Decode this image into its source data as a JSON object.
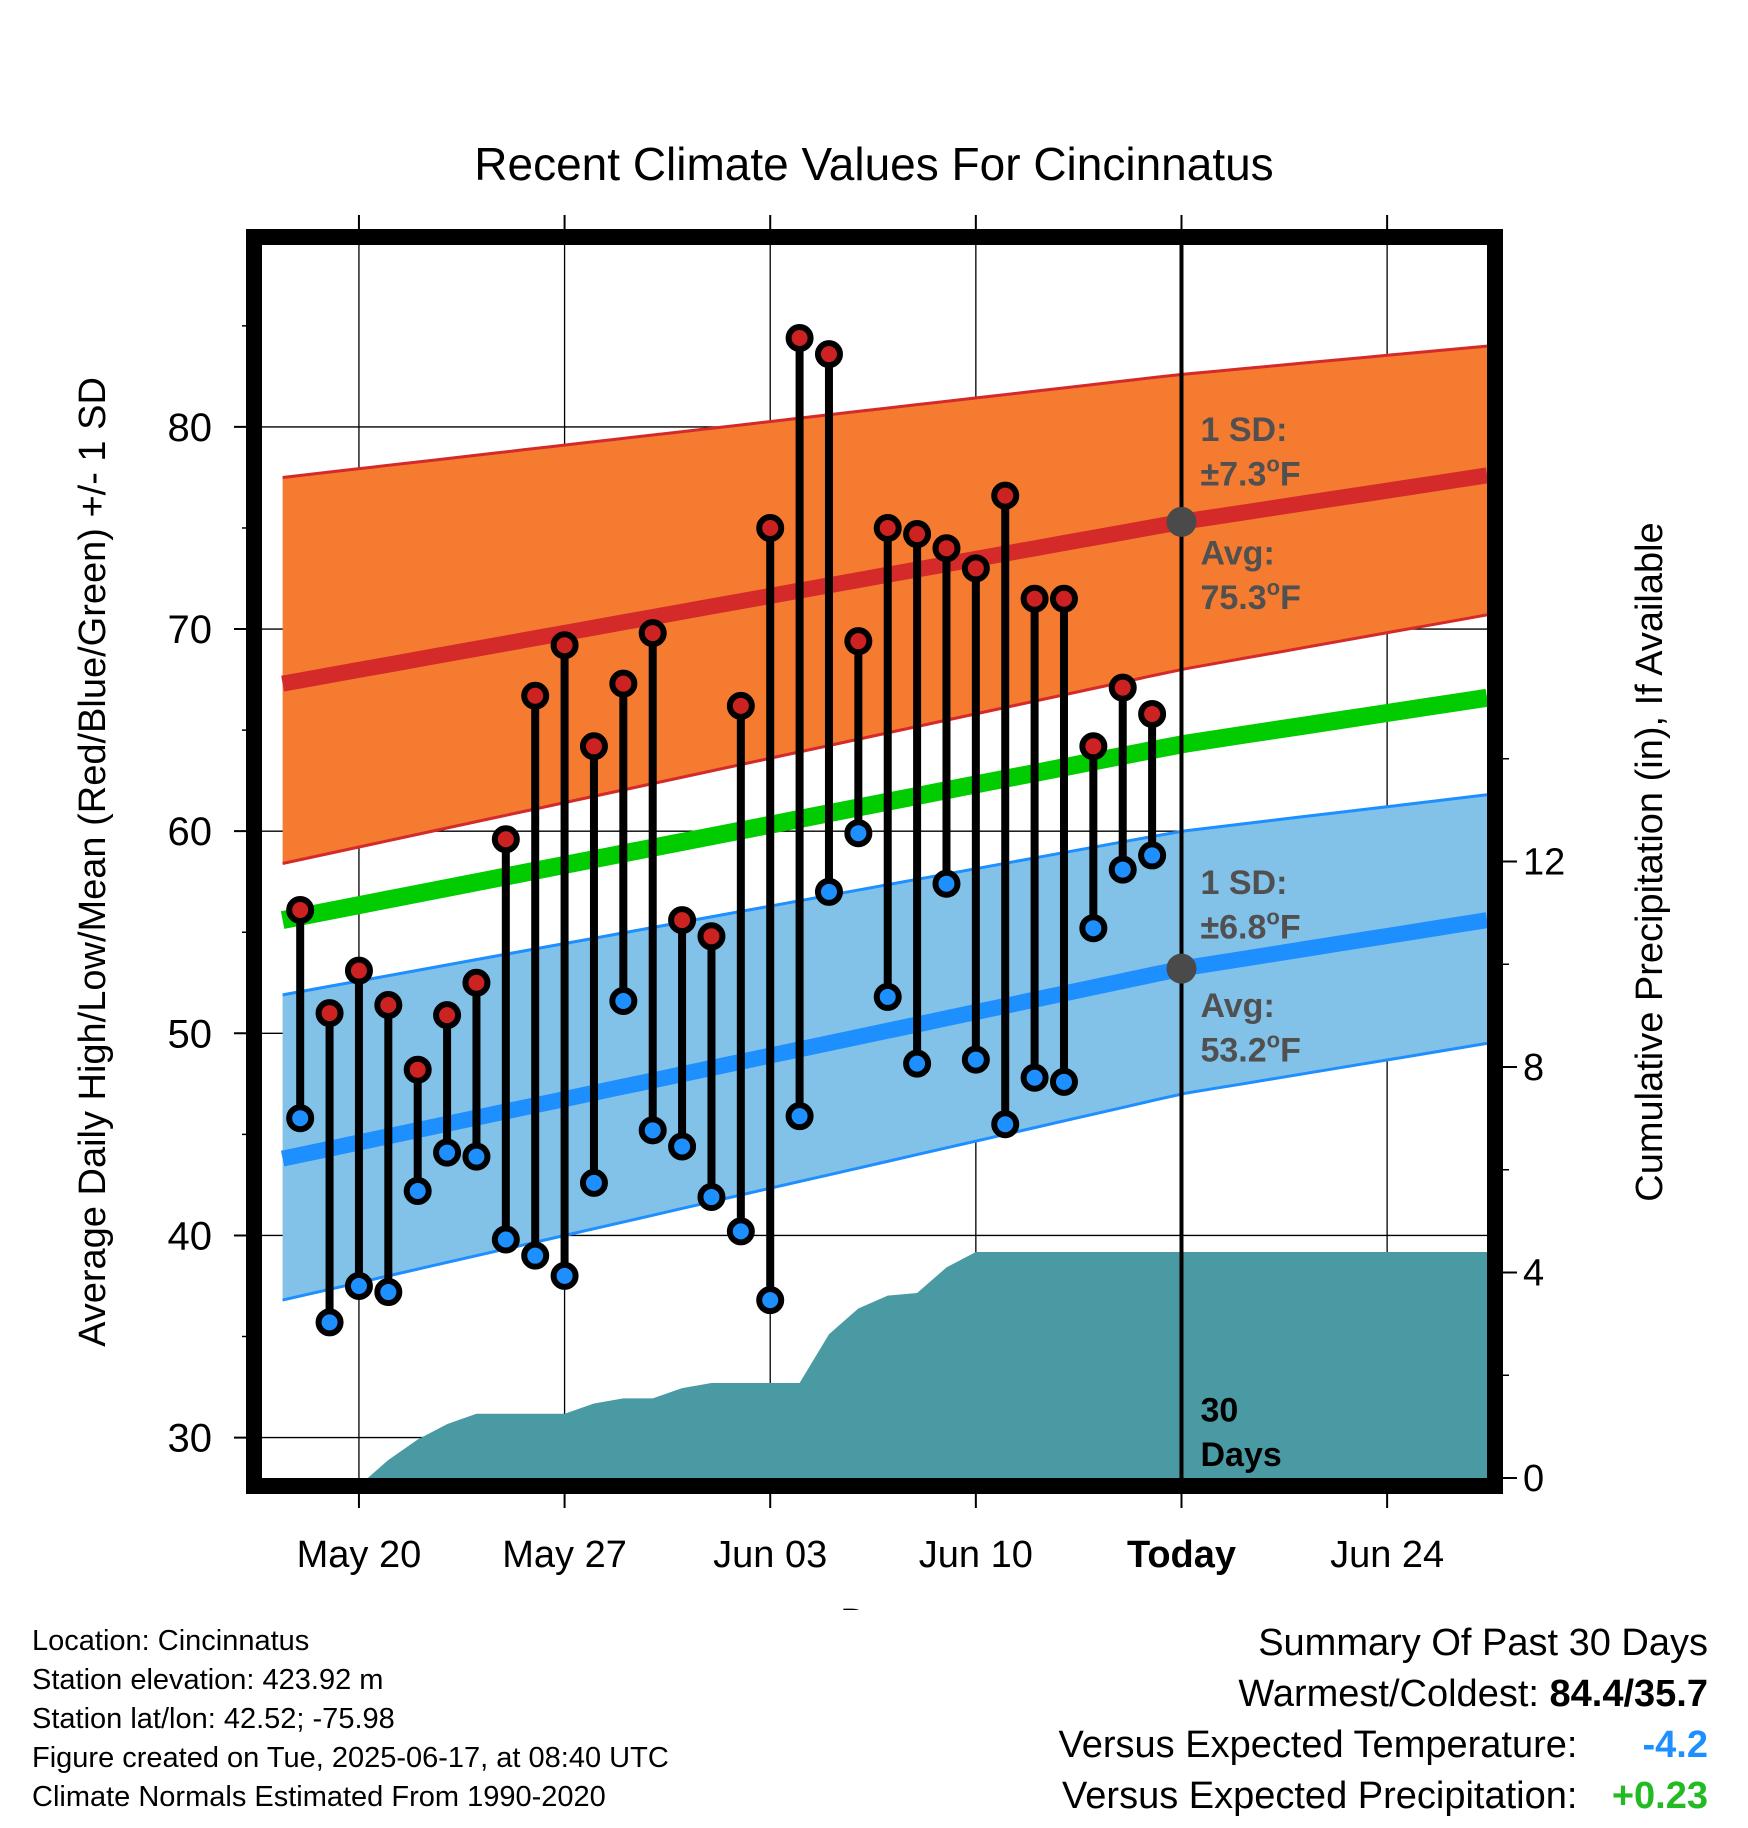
{
  "chart_data": {
    "type": "line",
    "title": "Recent Climate Values For Cincinnatus",
    "xlabel": "Day",
    "ylabel": "Average Daily High/Low/Mean (Red/Blue/Green) +/- 1 SD",
    "y2label": "Cumulative Precipitation (in), If Available",
    "ylim": [
      28,
      89
    ],
    "y2lim": [
      0,
      24
    ],
    "yticks": [
      30,
      40,
      50,
      60,
      70,
      80
    ],
    "y2ticks": [
      0,
      4,
      8,
      12
    ],
    "xlim": [
      -3.3,
      38.4
    ],
    "xticks": [
      {
        "x": 0,
        "label": "May 20"
      },
      {
        "x": 7,
        "label": "May 27"
      },
      {
        "x": 14,
        "label": "Jun 03"
      },
      {
        "x": 21,
        "label": "Jun 10"
      },
      {
        "x": 28,
        "label": "Today"
      },
      {
        "x": 35,
        "label": "Jun 24"
      }
    ],
    "grid": true,
    "days": [
      -2,
      -1,
      0,
      1,
      2,
      3,
      4,
      5,
      6,
      7,
      8,
      9,
      10,
      11,
      12,
      13,
      14,
      15,
      16,
      17,
      18,
      19,
      20,
      21,
      22,
      23,
      24,
      25,
      26,
      27
    ],
    "highs": [
      56.1,
      51.0,
      53.1,
      51.4,
      48.2,
      50.9,
      52.5,
      59.6,
      66.7,
      69.2,
      64.2,
      67.3,
      69.8,
      55.6,
      54.8,
      66.2,
      75.0,
      84.4,
      83.6,
      69.4,
      75.0,
      74.7,
      74.0,
      73.0,
      76.6,
      71.5,
      71.5,
      64.2,
      67.1,
      65.8
    ],
    "lows": [
      45.8,
      35.7,
      37.5,
      37.2,
      42.2,
      44.1,
      43.9,
      39.8,
      39.0,
      38.0,
      42.6,
      51.6,
      45.2,
      44.4,
      41.9,
      40.2,
      36.8,
      45.9,
      57.0,
      59.9,
      51.8,
      48.5,
      57.4,
      48.7,
      45.5,
      47.8,
      47.6,
      55.2,
      58.1,
      58.8
    ],
    "normal_high": {
      "x": [
        -2.6,
        28,
        38.4
      ],
      "y": [
        67.3,
        75.3,
        77.6
      ]
    },
    "normal_high_band": {
      "x": [
        -2.6,
        28,
        38.4
      ],
      "upper": [
        77.5,
        82.6,
        84.0
      ],
      "lower": [
        58.4,
        68.0,
        70.7
      ]
    },
    "normal_mean": {
      "x": [
        -2.6,
        28,
        38.4
      ],
      "y": [
        55.6,
        64.3,
        66.6
      ]
    },
    "normal_low": {
      "x": [
        -2.6,
        28,
        38.4
      ],
      "y": [
        43.8,
        53.2,
        55.6
      ]
    },
    "normal_low_band": {
      "x": [
        -2.6,
        28,
        38.4
      ],
      "upper": [
        51.9,
        60.0,
        61.8
      ],
      "lower": [
        36.8,
        47.0,
        49.5
      ]
    },
    "precip": {
      "x": [
        0.3,
        1,
        2,
        3,
        4,
        5,
        6,
        7,
        8,
        9,
        10,
        11,
        12,
        13,
        14,
        15,
        16,
        17,
        18,
        19,
        20,
        21,
        22,
        23,
        24,
        25,
        26,
        27,
        28,
        38.4
      ],
      "y": [
        0,
        0.35,
        0.75,
        1.05,
        1.25,
        1.25,
        1.25,
        1.25,
        1.45,
        1.55,
        1.55,
        1.75,
        1.85,
        1.85,
        1.85,
        1.85,
        2.8,
        3.3,
        3.55,
        3.6,
        4.1,
        4.4,
        4.4,
        4.4,
        4.4,
        4.4,
        4.4,
        4.4,
        4.4,
        4.4
      ]
    },
    "today_x": 28,
    "annotations": {
      "high_sd_line1": "1 SD:",
      "high_sd_line2": "±7.3",
      "high_avg_line1": "Avg:",
      "high_avg_line2": "75.3",
      "low_sd_line1": "1 SD:",
      "low_sd_line2": "±6.8",
      "low_avg_line1": "Avg:",
      "low_avg_line2": "53.2",
      "degree": "o",
      "unit": "F",
      "days_line1": "30",
      "days_line2": "Days"
    },
    "colors": {
      "high_band": "#f47b30",
      "high_line": "#d42a2a",
      "mean_line": "#00cc00",
      "low_band": "#82c1e8",
      "low_line": "#1e8fff",
      "precip": "#4a9aa3",
      "high_dot": "#cc2222",
      "low_dot": "#1e8fff",
      "annotation": "#505050"
    }
  },
  "info": {
    "location": "Location: Cincinnatus",
    "elevation": "Station elevation: 423.92 m",
    "latlon": "Station lat/lon: 42.52; -75.98",
    "created": "Figure created on Tue, 2025-06-17, at 08:40 UTC",
    "normals": "Climate Normals Estimated From 1990-2020"
  },
  "summary": {
    "title": "Summary Of Past 30 Days",
    "warm_cold_label": "Warmest/Coldest:",
    "warm_cold_value": "84.4/35.7",
    "temp_label": "Versus Expected Temperature:",
    "temp_value": "-4.2",
    "temp_color": "#1e8fff",
    "precip_label": "Versus Expected Precipitation:",
    "precip_value": "+0.23",
    "precip_color": "#22bb22"
  }
}
